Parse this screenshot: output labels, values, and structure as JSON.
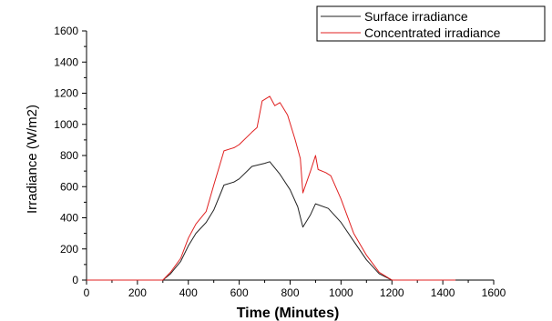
{
  "chart_data": {
    "type": "line",
    "xlabel": "Time (Minutes)",
    "ylabel": "Irradiance (W/m2)",
    "xlim": [
      0,
      1600
    ],
    "ylim": [
      0,
      1600
    ],
    "xticks": [
      "0",
      "200",
      "400",
      "600",
      "800",
      "1000",
      "1200",
      "1400",
      "1600"
    ],
    "yticks": [
      "0",
      "200",
      "400",
      "600",
      "800",
      "1000",
      "1200",
      "1400",
      "1600"
    ],
    "grid": false,
    "legend_position": "top-right",
    "series": [
      {
        "name": "Surface irradiance",
        "color": "#222222",
        "points": [
          [
            0,
            0
          ],
          [
            300,
            0
          ],
          [
            330,
            40
          ],
          [
            370,
            120
          ],
          [
            400,
            220
          ],
          [
            430,
            300
          ],
          [
            470,
            370
          ],
          [
            500,
            450
          ],
          [
            540,
            610
          ],
          [
            580,
            630
          ],
          [
            600,
            650
          ],
          [
            650,
            730
          ],
          [
            700,
            750
          ],
          [
            720,
            760
          ],
          [
            760,
            680
          ],
          [
            800,
            580
          ],
          [
            830,
            470
          ],
          [
            850,
            340
          ],
          [
            880,
            420
          ],
          [
            900,
            490
          ],
          [
            950,
            460
          ],
          [
            1000,
            370
          ],
          [
            1050,
            250
          ],
          [
            1100,
            130
          ],
          [
            1150,
            40
          ],
          [
            1200,
            0
          ],
          [
            1450,
            0
          ]
        ]
      },
      {
        "name": "Concentrated irradiance",
        "color": "#e02020",
        "points": [
          [
            0,
            0
          ],
          [
            300,
            0
          ],
          [
            330,
            50
          ],
          [
            370,
            140
          ],
          [
            400,
            270
          ],
          [
            430,
            360
          ],
          [
            470,
            440
          ],
          [
            500,
            610
          ],
          [
            540,
            830
          ],
          [
            580,
            850
          ],
          [
            600,
            870
          ],
          [
            650,
            950
          ],
          [
            670,
            980
          ],
          [
            690,
            1150
          ],
          [
            710,
            1170
          ],
          [
            720,
            1180
          ],
          [
            740,
            1120
          ],
          [
            760,
            1140
          ],
          [
            790,
            1060
          ],
          [
            820,
            900
          ],
          [
            840,
            780
          ],
          [
            850,
            560
          ],
          [
            880,
            700
          ],
          [
            900,
            800
          ],
          [
            910,
            710
          ],
          [
            940,
            690
          ],
          [
            960,
            670
          ],
          [
            1000,
            520
          ],
          [
            1050,
            300
          ],
          [
            1100,
            160
          ],
          [
            1150,
            50
          ],
          [
            1200,
            0
          ],
          [
            1450,
            0
          ]
        ]
      }
    ]
  }
}
